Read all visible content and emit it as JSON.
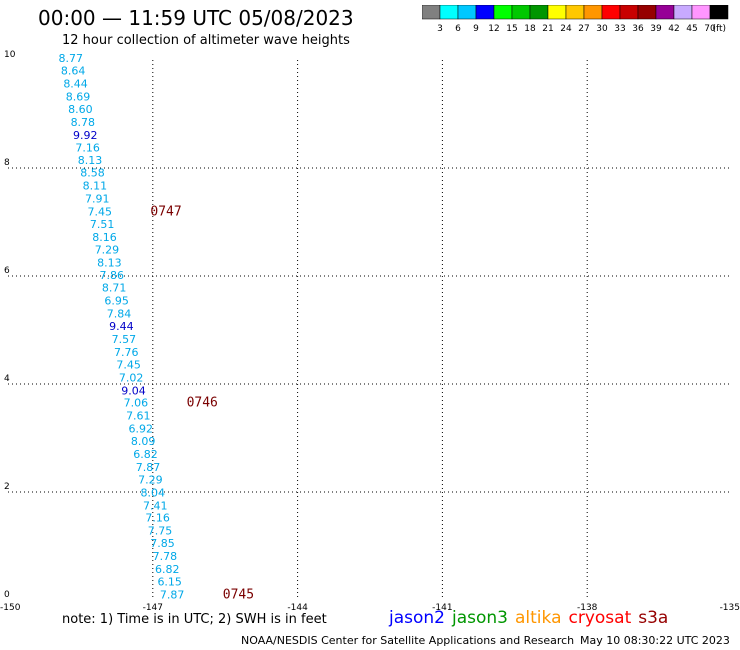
{
  "header": {
    "title": "00:00 — 11:59 UTC 05/08/2023",
    "subtitle": "12 hour collection of altimeter wave heights"
  },
  "colorbar": {
    "colors": [
      "#808080",
      "#00ffff",
      "#00c8ff",
      "#0000ff",
      "#00ff00",
      "#00c800",
      "#009600",
      "#ffff00",
      "#ffc800",
      "#ff9600",
      "#ff0000",
      "#c80000",
      "#960000",
      "#960096",
      "#c8aaff",
      "#ff96ff",
      "#000000"
    ],
    "labels": [
      "3",
      "6",
      "9",
      "12",
      "15",
      "18",
      "21",
      "24",
      "27",
      "30",
      "33",
      "36",
      "39",
      "42",
      "45",
      "70"
    ],
    "unit": "(ft)"
  },
  "chart_data": {
    "type": "scatter",
    "title": "00:00 — 11:59 UTC 05/08/2023",
    "subtitle": "12 hour collection of altimeter wave heights",
    "xlim": [
      -150,
      -135
    ],
    "ylim": [
      0,
      10
    ],
    "x_ticks": [
      "-150",
      "-147",
      "-144",
      "-141",
      "-138",
      "-135"
    ],
    "y_ticks": [
      "0",
      "2",
      "4",
      "6",
      "8",
      "10"
    ],
    "grid": true,
    "points": [
      {
        "x": -148.7,
        "y": 9.96,
        "label": "8.77",
        "color": "#00a8e8"
      },
      {
        "x": -148.65,
        "y": 9.73,
        "label": "8.64",
        "color": "#00a8e8"
      },
      {
        "x": -148.6,
        "y": 9.49,
        "label": "8.44",
        "color": "#00a8e8"
      },
      {
        "x": -148.55,
        "y": 9.25,
        "label": "8.69",
        "color": "#00a8e8"
      },
      {
        "x": -148.5,
        "y": 9.02,
        "label": "8.60",
        "color": "#00a8e8"
      },
      {
        "x": -148.45,
        "y": 8.78,
        "label": "8.78",
        "color": "#00a8e8"
      },
      {
        "x": -148.4,
        "y": 8.54,
        "label": "9.92",
        "color": "#0000c8"
      },
      {
        "x": -148.35,
        "y": 8.31,
        "label": "7.16",
        "color": "#00a8e8"
      },
      {
        "x": -148.3,
        "y": 8.07,
        "label": "8.13",
        "color": "#00a8e8"
      },
      {
        "x": -148.25,
        "y": 7.84,
        "label": "8.58",
        "color": "#00a8e8"
      },
      {
        "x": -148.2,
        "y": 7.6,
        "label": "8.11",
        "color": "#00a8e8"
      },
      {
        "x": -148.15,
        "y": 7.36,
        "label": "7.91",
        "color": "#00a8e8"
      },
      {
        "x": -148.1,
        "y": 7.12,
        "label": "7.45",
        "color": "#00a8e8"
      },
      {
        "x": -148.05,
        "y": 6.89,
        "label": "7.51",
        "color": "#00a8e8"
      },
      {
        "x": -148.0,
        "y": 6.65,
        "label": "8.16",
        "color": "#00a8e8"
      },
      {
        "x": -147.95,
        "y": 6.42,
        "label": "7.29",
        "color": "#00a8e8"
      },
      {
        "x": -147.9,
        "y": 6.18,
        "label": "8.13",
        "color": "#00a8e8"
      },
      {
        "x": -147.85,
        "y": 5.94,
        "label": "7.86",
        "color": "#00a8e8"
      },
      {
        "x": -147.8,
        "y": 5.71,
        "label": "8.71",
        "color": "#00a8e8"
      },
      {
        "x": -147.75,
        "y": 5.47,
        "label": "6.95",
        "color": "#00a8e8"
      },
      {
        "x": -147.7,
        "y": 5.23,
        "label": "7.84",
        "color": "#00a8e8"
      },
      {
        "x": -147.65,
        "y": 5.0,
        "label": "9.44",
        "color": "#0000c8"
      },
      {
        "x": -147.6,
        "y": 4.76,
        "label": "7.57",
        "color": "#00a8e8"
      },
      {
        "x": -147.55,
        "y": 4.52,
        "label": "7.76",
        "color": "#00a8e8"
      },
      {
        "x": -147.5,
        "y": 4.29,
        "label": "7.45",
        "color": "#00a8e8"
      },
      {
        "x": -147.45,
        "y": 4.05,
        "label": "7.02",
        "color": "#00a8e8"
      },
      {
        "x": -147.4,
        "y": 3.81,
        "label": "9.04",
        "color": "#0000c8"
      },
      {
        "x": -147.35,
        "y": 3.58,
        "label": "7.06",
        "color": "#00a8e8"
      },
      {
        "x": -147.3,
        "y": 3.34,
        "label": "7.61",
        "color": "#00a8e8"
      },
      {
        "x": -147.25,
        "y": 3.1,
        "label": "6.92",
        "color": "#00a8e8"
      },
      {
        "x": -147.2,
        "y": 2.87,
        "label": "8.09",
        "color": "#00a8e8"
      },
      {
        "x": -147.15,
        "y": 2.63,
        "label": "6.82",
        "color": "#00a8e8"
      },
      {
        "x": -147.1,
        "y": 2.39,
        "label": "7.87",
        "color": "#00a8e8"
      },
      {
        "x": -147.05,
        "y": 2.16,
        "label": "7.29",
        "color": "#00a8e8"
      },
      {
        "x": -147.0,
        "y": 1.92,
        "label": "8.04",
        "color": "#00a8e8"
      },
      {
        "x": -146.95,
        "y": 1.68,
        "label": "7.41",
        "color": "#00a8e8"
      },
      {
        "x": -146.9,
        "y": 1.45,
        "label": "7.16",
        "color": "#00a8e8"
      },
      {
        "x": -146.85,
        "y": 1.21,
        "label": "7.75",
        "color": "#00a8e8"
      },
      {
        "x": -146.8,
        "y": 0.98,
        "label": "7.85",
        "color": "#00a8e8"
      },
      {
        "x": -146.75,
        "y": 0.74,
        "label": "7.78",
        "color": "#00a8e8"
      },
      {
        "x": -146.7,
        "y": 0.5,
        "label": "6.82",
        "color": "#00a8e8"
      },
      {
        "x": -146.65,
        "y": 0.27,
        "label": "6.15",
        "color": "#00a8e8"
      },
      {
        "x": -146.6,
        "y": 0.03,
        "label": "7.87",
        "color": "#00a8e8"
      }
    ],
    "time_labels": [
      {
        "x": -147.05,
        "y": 7.12,
        "label": "0747"
      },
      {
        "x": -146.3,
        "y": 3.58,
        "label": "0746"
      },
      {
        "x": -145.55,
        "y": 0.03,
        "label": "0745"
      }
    ]
  },
  "footer": {
    "note": "note: 1) Time is in UTC; 2) SWH is in feet",
    "legend": [
      {
        "name": "jason2",
        "color": "#0000ff"
      },
      {
        "name": "jason3",
        "color": "#009600"
      },
      {
        "name": "altika",
        "color": "#ff9600"
      },
      {
        "name": "cryosat",
        "color": "#ff0000"
      },
      {
        "name": "s3a",
        "color": "#960000"
      }
    ],
    "credit": "NOAA/NESDIS Center for Satellite Applications and Research",
    "timestamp": "May 10 08:30:22 UTC 2023"
  }
}
